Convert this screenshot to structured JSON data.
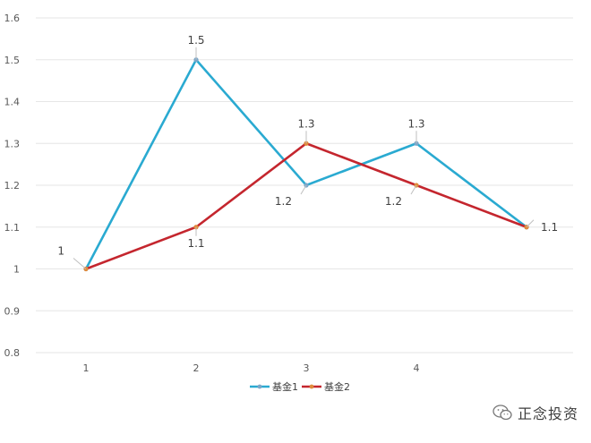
{
  "chart_data": {
    "type": "line",
    "x": [
      "1",
      "2",
      "3",
      "4",
      "5"
    ],
    "x_tick_labels": [
      "1",
      "2",
      "3",
      "4"
    ],
    "ylim": [
      0.8,
      1.6
    ],
    "y_ticks": [
      "0.8",
      "0.9",
      "1",
      "1.1",
      "1.2",
      "1.3",
      "1.4",
      "1.5",
      "1.6"
    ],
    "grid": "horizontal",
    "legend_position": "bottom",
    "series": [
      {
        "name": "基金1",
        "color": "#2AAAD1",
        "values": [
          1.0,
          1.5,
          1.2,
          1.3,
          1.1
        ],
        "data_labels": [
          "",
          "1.5",
          "1.2",
          "1.3",
          ""
        ]
      },
      {
        "name": "基金2",
        "color": "#C4262E",
        "values": [
          1.0,
          1.1,
          1.3,
          1.2,
          1.1
        ],
        "data_labels": [
          "1",
          "1.1",
          "1.3",
          "1.2",
          "1.1"
        ]
      }
    ]
  },
  "watermark": {
    "text": "正念投资"
  }
}
